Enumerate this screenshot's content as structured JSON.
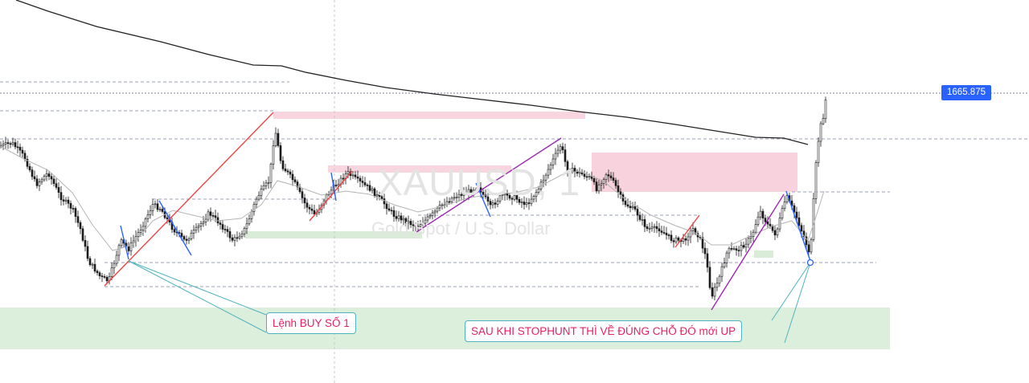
{
  "chart_data": {
    "type": "candlestick",
    "symbol_watermark": "XAUUSD, 1",
    "description_watermark": "Gold Spot / U.S. Dollar",
    "current_price_label": "1665.875",
    "annotations": [
      {
        "id": "note-1",
        "text": "Lệnh BUY SỐ 1"
      },
      {
        "id": "note-2",
        "text": "SAU KHI STOPHUNT THÌ VỀ ĐÚNG CHỖ ĐÓ mới UP"
      }
    ],
    "colors": {
      "candle": "#1a1a1a",
      "long_ma": "#222222",
      "short_ma": "#b0b0b0",
      "red_trend": "#ef4444",
      "purple_trend": "#9c27b0",
      "blue_swing": "#2962ff",
      "supply_zone": "#f8d7e0",
      "demand_zone": "#dff0df",
      "callout_border": "#4fb3bf",
      "callout_text": "#e91e63",
      "price_tag": "#2962ff"
    },
    "grid": false
  }
}
